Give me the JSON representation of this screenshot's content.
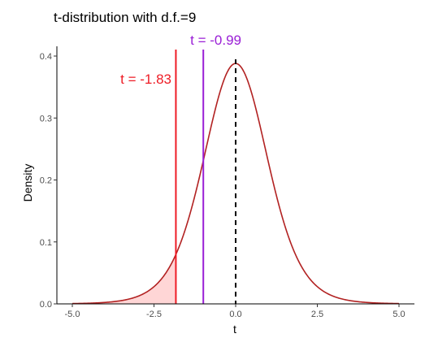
{
  "chart_data": {
    "type": "line",
    "title": "t-distribution with d.f.=9",
    "xlabel": "t",
    "ylabel": "Density",
    "df": 9,
    "xlim": [
      -5.0,
      5.0
    ],
    "ylim": [
      0.0,
      0.4
    ],
    "x_ticks": [
      -5.0,
      -2.5,
      0.0,
      2.5,
      5.0
    ],
    "x_tick_labels": [
      "-5.0",
      "-2.5",
      "0.0",
      "2.5",
      "5.0"
    ],
    "y_ticks": [
      0.0,
      0.1,
      0.2,
      0.3,
      0.4
    ],
    "y_tick_labels": [
      "0.0",
      "0.1",
      "0.2",
      "0.3",
      "0.4"
    ],
    "grid": false,
    "legend": "none",
    "series": [
      {
        "x": [
          -5.0,
          -4.5,
          -4.0,
          -3.5,
          -3.0,
          -2.5,
          -2.0,
          -1.83,
          -1.5,
          -1.0,
          -0.99,
          -0.5,
          0.0,
          0.5,
          1.0,
          1.5,
          2.0,
          2.5,
          3.0,
          3.5,
          4.0,
          4.5,
          5.0
        ],
        "y": [
          0.0011,
          0.0021,
          0.004,
          0.0079,
          0.0155,
          0.0295,
          0.0581,
          0.0738,
          0.1222,
          0.2304,
          0.233,
          0.3454,
          0.388,
          0.3454,
          0.2304,
          0.1222,
          0.0581,
          0.0295,
          0.0155,
          0.0079,
          0.004,
          0.0021,
          0.0011
        ],
        "color": "#b22222"
      }
    ],
    "shaded_region": {
      "from": -5.0,
      "to": -1.83,
      "color": "#ffd6d6"
    },
    "vertical_lines": [
      {
        "x": -1.83,
        "label": "t = -1.83",
        "color": "#ee1c25",
        "style": "solid"
      },
      {
        "x": -0.99,
        "label": "t = -0.99",
        "color": "#9a1fd6",
        "style": "solid"
      },
      {
        "x": 0.0,
        "label": "",
        "color": "#000000",
        "style": "dashed"
      }
    ]
  }
}
